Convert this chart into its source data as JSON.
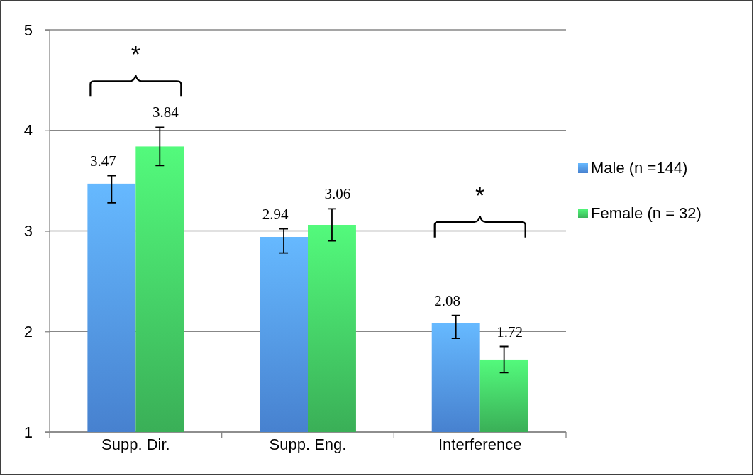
{
  "chart_data": {
    "type": "bar",
    "categories": [
      "Supp. Dir.",
      "Supp. Eng.",
      "Interference"
    ],
    "series": [
      {
        "name": "Male (n =144)",
        "color": "#4a86d6",
        "values": [
          3.47,
          2.94,
          2.08
        ],
        "errors": [
          [
            3.28,
            3.55
          ],
          [
            2.78,
            3.02
          ],
          [
            1.93,
            2.16
          ]
        ]
      },
      {
        "name": "Female (n = 32)",
        "color": "#3cb55a",
        "values": [
          3.84,
          3.06,
          1.72
        ],
        "errors": [
          [
            3.65,
            4.03
          ],
          [
            2.9,
            3.22
          ],
          [
            1.59,
            1.85
          ]
        ]
      }
    ],
    "ylim": [
      1,
      5
    ],
    "yticks": [
      1,
      2,
      3,
      4,
      5
    ],
    "grid": "y",
    "legend": "right",
    "data_labels": true,
    "annotations": [
      "*",
      "*"
    ]
  }
}
